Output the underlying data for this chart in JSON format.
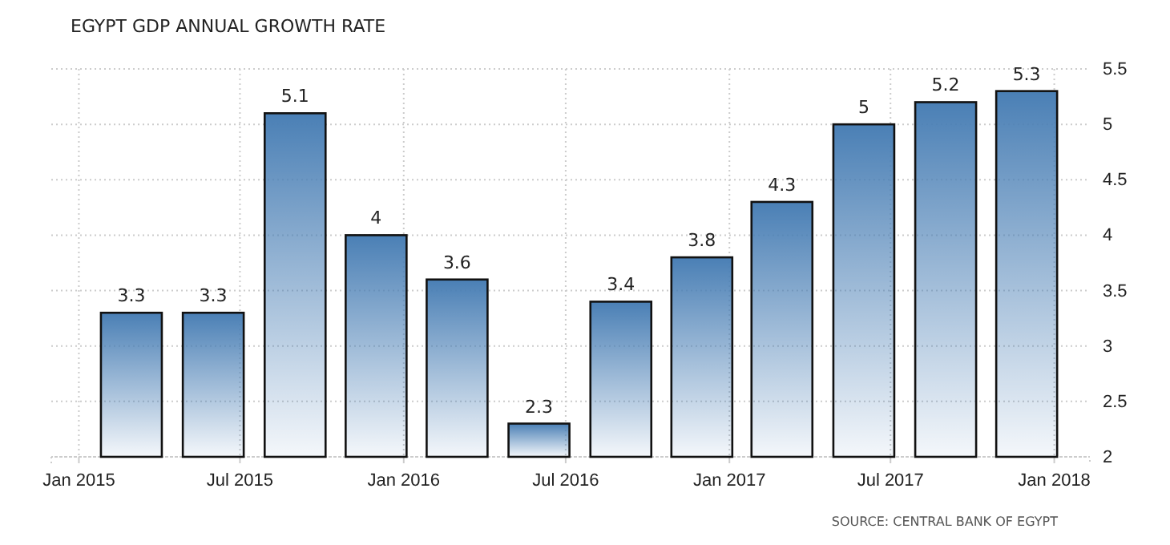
{
  "chart_data": {
    "type": "bar",
    "title": "EGYPT GDP ANNUAL GROWTH RATE",
    "x": [
      "2015-03-01",
      "2015-06-01",
      "2015-09-01",
      "2015-12-01",
      "2016-03-01",
      "2016-06-01",
      "2016-09-01",
      "2016-12-01",
      "2017-03-01",
      "2017-06-01",
      "2017-09-01",
      "2017-12-01"
    ],
    "values": [
      3.3,
      3.3,
      5.1,
      4,
      3.6,
      2.3,
      3.4,
      3.8,
      4.3,
      5,
      5.2,
      5.3
    ],
    "color": "#4a7fb5",
    "data_labels": true,
    "xlim": [
      "2014-12-01",
      "2018-02-10"
    ],
    "xticks": [
      {
        "value": "2015-01-01",
        "label": "Jan 2015"
      },
      {
        "value": "2015-07-01",
        "label": "Jul 2015"
      },
      {
        "value": "2016-01-01",
        "label": "Jan 2016"
      },
      {
        "value": "2016-07-01",
        "label": "Jul 2016"
      },
      {
        "value": "2017-01-01",
        "label": "Jan 2017"
      },
      {
        "value": "2017-07-01",
        "label": "Jul 2017"
      },
      {
        "value": "2018-01-01",
        "label": "Jan 2018"
      }
    ],
    "ylim": [
      2,
      5.5
    ],
    "yticks": [
      2,
      2.5,
      3,
      3.5,
      4,
      4.5,
      5,
      5.5
    ],
    "grid": true,
    "annotations": [
      "SOURCE: CENTRAL BANK OF EGYPT"
    ]
  }
}
